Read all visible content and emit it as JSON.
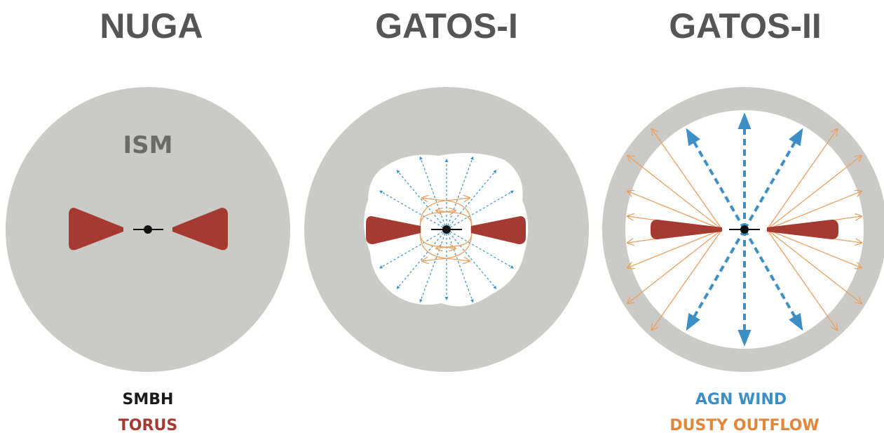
{
  "panels": [
    {
      "title": "NUGA",
      "region_label": "ISM"
    },
    {
      "title": "GATOS-I"
    },
    {
      "title": "GATOS-II"
    }
  ],
  "legend": {
    "left": [
      "SMBH",
      "TORUS"
    ],
    "right": [
      "AGN WIND",
      "DUSTY OUTFLOW"
    ]
  }
}
